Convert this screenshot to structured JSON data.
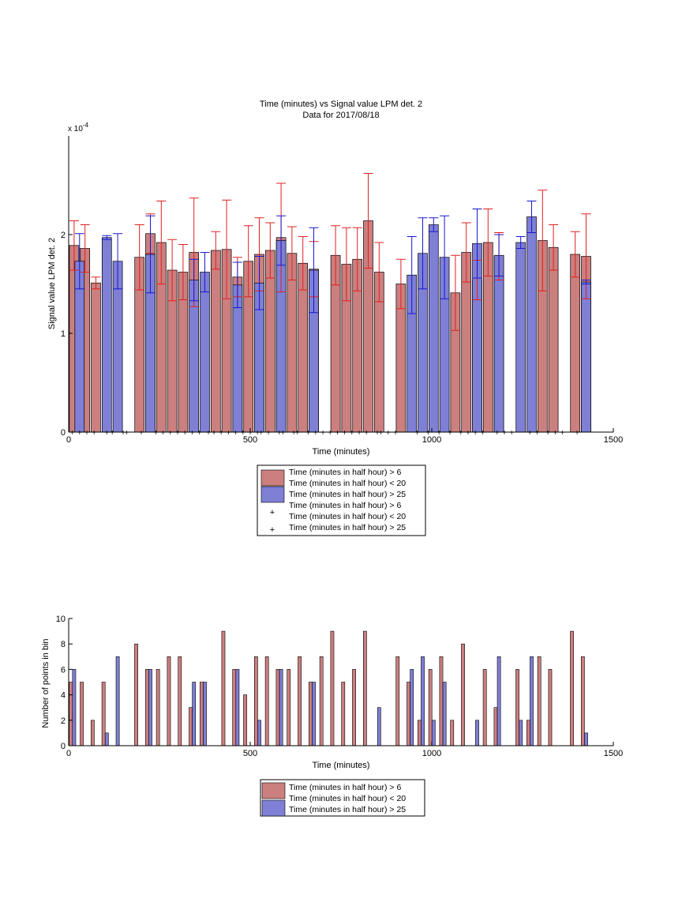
{
  "colors": {
    "red_bar": "#cc7f7f",
    "blue_bar": "#7f7fd6",
    "red_err": "#e02020",
    "blue_err": "#1818d0",
    "axis": "#000000"
  },
  "chart_data": [
    {
      "type": "bar",
      "title": "Time (minutes) vs Signal value LPM det. 2",
      "subtitle": "Data for 2017/08/18",
      "xlabel": "Time (minutes)",
      "ylabel": "Signal value LPM det. 2",
      "y_exponent_label": "x 10",
      "y_exponent_power": "-4",
      "xlim": [
        0,
        1500
      ],
      "ylim": [
        0,
        3
      ],
      "xticks": [
        "0",
        "500",
        "1000",
        "1500"
      ],
      "yticks": [
        "0",
        "1",
        "2"
      ],
      "grid": false,
      "legend": {
        "placement": "below",
        "entries": [
          "Time (minutes in half hour) > 6",
          "Time (minutes in half hour) < 20",
          "Time (minutes in half hour) > 25",
          "Time (minutes in half hour) > 6",
          "Time (minutes in half hour) < 20",
          "Time (minutes in half hour) > 25"
        ]
      },
      "series": [
        {
          "color": "red",
          "x": [
            15,
            45,
            75,
            195,
            225,
            255,
            285,
            315,
            345,
            405,
            435,
            465,
            495,
            525,
            555,
            585,
            615,
            645,
            675,
            735,
            765,
            795,
            825,
            855,
            915,
            1065,
            1095,
            1125,
            1155,
            1185,
            1305,
            1335,
            1395,
            1425
          ],
          "values": [
            1.89,
            1.86,
            1.51,
            1.77,
            2.01,
            1.92,
            1.64,
            1.62,
            1.82,
            1.84,
            1.85,
            1.57,
            1.73,
            1.8,
            1.84,
            1.97,
            1.81,
            1.71,
            1.65,
            1.79,
            1.7,
            1.75,
            2.14,
            1.62,
            1.5,
            1.41,
            1.82,
            1.54,
            1.92,
            1.78,
            1.94,
            1.87,
            1.8,
            1.78
          ],
          "err": [
            0.25,
            0.24,
            0.06,
            0.33,
            0.2,
            0.42,
            0.31,
            0.28,
            0.55,
            0.19,
            0.5,
            0.2,
            0.36,
            0.37,
            0.28,
            0.55,
            0.27,
            0.27,
            0.28,
            0.3,
            0.37,
            0.32,
            0.48,
            0.3,
            0.25,
            0.38,
            0.3,
            0.2,
            0.34,
            0.24,
            0.51,
            0.23,
            0.23,
            0.43
          ]
        },
        {
          "color": "blue",
          "x": [
            30,
            105,
            135,
            225,
            345,
            375,
            465,
            525,
            585,
            675,
            945,
            975,
            1005,
            1035,
            1125,
            1185,
            1245,
            1275,
            1425
          ],
          "values": [
            1.73,
            1.97,
            1.73,
            1.8,
            1.54,
            1.62,
            1.49,
            1.51,
            1.94,
            1.64,
            1.59,
            1.81,
            2.1,
            1.77,
            1.91,
            1.79,
            1.92,
            2.18,
            1.52
          ],
          "err": [
            0.28,
            0.02,
            0.28,
            0.39,
            0.21,
            0.2,
            0.23,
            0.27,
            0.25,
            0.43,
            0.39,
            0.36,
            0.07,
            0.42,
            0.35,
            0.21,
            0.06,
            0.16,
            0.02
          ]
        }
      ],
      "baseline_markers": {
        "red": [
          150,
          200,
          385,
          520,
          590,
          620,
          680,
          740,
          780,
          800,
          850,
          990,
          1050,
          1080,
          1120,
          1200,
          1270,
          1340,
          1400
        ],
        "blue": [
          10,
          30,
          50,
          70,
          105,
          120,
          160,
          240,
          260,
          280,
          300,
          320,
          340,
          360,
          400,
          420,
          440,
          460,
          480,
          500,
          530,
          550,
          580,
          630,
          660,
          700,
          720,
          760,
          820,
          860,
          880,
          900,
          960,
          1020,
          1100,
          1140,
          1180,
          1220,
          1290,
          1320,
          1360
        ]
      }
    },
    {
      "type": "bar",
      "title": "",
      "xlabel": "Time (minutes)",
      "ylabel": "Number of points in bin",
      "xlim": [
        0,
        1500
      ],
      "ylim": [
        0,
        10
      ],
      "xticks": [
        "0",
        "500",
        "1000",
        "1500"
      ],
      "yticks": [
        "0",
        "2",
        "4",
        "6",
        "8",
        "10"
      ],
      "grid": false,
      "legend": {
        "placement": "below",
        "entries": [
          "Time (minutes in half hour) > 6",
          "Time (minutes in half hour) < 20",
          "Time (minutes in half hour) > 25"
        ]
      },
      "series": [
        {
          "color": "red",
          "x": [
            6,
            36,
            66,
            96,
            186,
            216,
            246,
            276,
            306,
            336,
            366,
            426,
            456,
            486,
            516,
            546,
            576,
            606,
            636,
            666,
            696,
            726,
            756,
            786,
            816,
            906,
            936,
            966,
            996,
            1026,
            1056,
            1086,
            1146,
            1176,
            1236,
            1266,
            1296,
            1326,
            1386,
            1416
          ],
          "values": [
            5,
            5,
            2,
            5,
            8,
            6,
            6,
            7,
            7,
            3,
            5,
            9,
            6,
            4,
            7,
            7,
            6,
            6,
            7,
            5,
            7,
            9,
            5,
            6,
            9,
            7,
            5,
            2,
            6,
            7,
            2,
            8,
            6,
            3,
            6,
            2,
            7,
            6,
            9,
            7
          ]
        },
        {
          "color": "blue",
          "x": [
            15,
            105,
            135,
            225,
            345,
            375,
            465,
            525,
            585,
            675,
            855,
            945,
            975,
            1005,
            1035,
            1125,
            1185,
            1245,
            1275,
            1425
          ],
          "values": [
            6,
            1,
            7,
            6,
            5,
            5,
            6,
            2,
            6,
            5,
            3,
            6,
            7,
            2,
            5,
            2,
            7,
            2,
            7,
            1
          ]
        }
      ]
    }
  ]
}
